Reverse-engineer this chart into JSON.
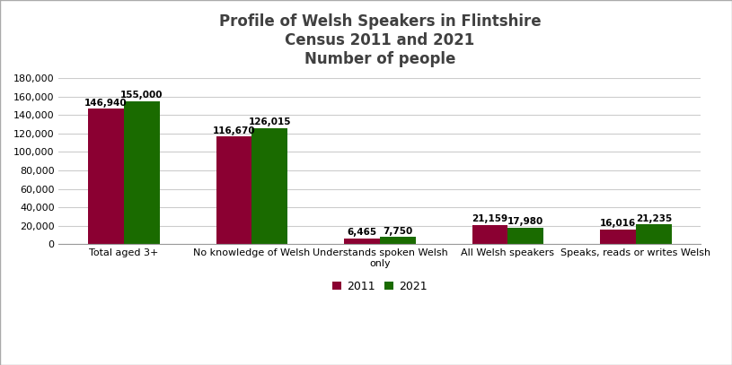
{
  "title_line1": "Profile of Welsh Speakers in Flintshire",
  "title_line2": "Census 2011 and 2021",
  "title_line3": "Number of people",
  "categories": [
    "Total aged 3+",
    "No knowledge of Welsh",
    "Understands spoken Welsh\nonly",
    "All Welsh speakers",
    "Speaks, reads or writes Welsh"
  ],
  "values_2011": [
    146940,
    116670,
    6465,
    21159,
    16016
  ],
  "values_2021": [
    155000,
    126015,
    7750,
    17980,
    21235
  ],
  "labels_2011": [
    "146,940",
    "116,670",
    "6,465",
    "21,159",
    "16,016"
  ],
  "labels_2021": [
    "155,000",
    "126,015",
    "7,750",
    "17,980",
    "21,235"
  ],
  "color_2011": "#8B0032",
  "color_2021": "#1A6B00",
  "legend_2011": "2011",
  "legend_2021": "2021",
  "ylim": [
    0,
    180000
  ],
  "yticks": [
    0,
    20000,
    40000,
    60000,
    80000,
    100000,
    120000,
    140000,
    160000,
    180000
  ],
  "bar_width": 0.28,
  "background_color": "#ffffff",
  "grid_color": "#cccccc",
  "title_color": "#404040",
  "title_fontsize": 12,
  "label_fontsize": 7.5,
  "tick_fontsize": 8,
  "legend_fontsize": 9,
  "border_color": "#aaaaaa"
}
